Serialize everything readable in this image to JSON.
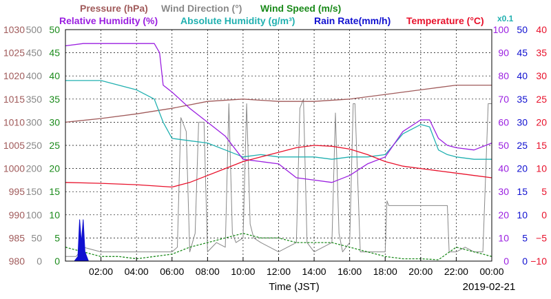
{
  "chart_data": {
    "type": "line",
    "xlabel": "Time (JST)",
    "date": "2019-02-21",
    "x_ticks": [
      "02:00",
      "04:00",
      "06:00",
      "08:00",
      "10:00",
      "12:00",
      "14:00",
      "16:00",
      "18:00",
      "20:00",
      "22:00",
      "00:00"
    ],
    "grid": true,
    "legend_row1": [
      {
        "text": "Pressure (hPa)",
        "color": "#a05a5a"
      },
      {
        "text": "Wind Direction (°)",
        "color": "#888888"
      },
      {
        "text": "Wind Speed (m/s)",
        "color": "#1a8a1a"
      }
    ],
    "legend_row2": [
      {
        "text": "Relative Humidity (%)",
        "color": "#9a1ee0"
      },
      {
        "text": "Absolute Humidity (g/m³)",
        "color": "#20b0b0"
      },
      {
        "text": "Rain Rate(mm/h)",
        "color": "#1010d0"
      },
      {
        "text": "Temperature (°C)",
        "color": "#e8102a"
      },
      {
        "text": "x0.1",
        "color": "#20b0b0"
      }
    ],
    "axes": {
      "pressure": {
        "color": "#a05a5a",
        "range": [
          980,
          1030
        ],
        "ticks": [
          "980",
          "985",
          "990",
          "995",
          "1000",
          "1005",
          "1010",
          "1015",
          "1020",
          "1025",
          "1030"
        ]
      },
      "wind_direction": {
        "color": "#888888",
        "range": [
          0,
          500
        ],
        "ticks": [
          "0",
          "50",
          "100",
          "150",
          "200",
          "250",
          "300",
          "350",
          "400",
          "450",
          "500"
        ]
      },
      "wind_speed": {
        "color": "#1a8a1a",
        "range": [
          0,
          50
        ],
        "ticks": [
          "0",
          "5",
          "10",
          "15",
          "20",
          "25",
          "30",
          "35",
          "40",
          "45",
          "50"
        ]
      },
      "humidity": {
        "color": "#9a1ee0",
        "range": [
          0,
          100
        ],
        "ticks": [
          "0",
          "10",
          "20",
          "30",
          "40",
          "50",
          "60",
          "70",
          "80",
          "90",
          "100"
        ]
      },
      "rain_rate": {
        "color": "#1010d0",
        "range": [
          0,
          50
        ],
        "ticks": [
          "0",
          "5",
          "10",
          "15",
          "20",
          "25",
          "30",
          "35",
          "40",
          "45",
          "50"
        ]
      },
      "temperature": {
        "color": "#e8102a",
        "range": [
          -10,
          40
        ],
        "ticks": [
          "−10",
          "−5",
          "0",
          "5",
          "10",
          "15",
          "20",
          "25",
          "30",
          "35",
          "40"
        ]
      }
    },
    "series": [
      {
        "name": "Pressure (hPa)",
        "axis": "pressure",
        "color": "#a05a5a",
        "x": [
          0,
          2,
          4,
          6,
          8,
          10,
          12,
          14,
          16,
          18,
          20,
          22,
          24
        ],
        "y": [
          1010,
          1010.8,
          1011.8,
          1013,
          1014.5,
          1015,
          1014.5,
          1014.5,
          1015,
          1016,
          1017,
          1018,
          1018
        ]
      },
      {
        "name": "Wind Direction (°)",
        "axis": "wind_direction",
        "color": "#888888",
        "x": [
          0,
          0.6,
          1,
          2,
          3,
          4,
          5,
          5.5,
          6,
          6.3,
          6.5,
          6.8,
          7,
          7.3,
          7.5,
          7.8,
          8,
          8.5,
          9,
          9.2,
          9.4,
          9.6,
          10,
          10.2,
          10.4,
          10.6,
          11,
          11.5,
          12,
          12.5,
          13,
          13.2,
          13.4,
          13.6,
          14,
          14.5,
          15,
          15.2,
          15.4,
          15.6,
          16,
          16.2,
          16.3,
          16.6,
          17,
          17.5,
          18,
          18.1,
          18.2,
          18.5,
          19,
          20,
          21,
          21.5,
          21.6,
          22,
          22.5,
          23,
          23.5,
          23.8,
          24
        ],
        "y": [
          10,
          10,
          30,
          20,
          20,
          20,
          20,
          20,
          20,
          30,
          310,
          280,
          20,
          60,
          300,
          300,
          20,
          40,
          30,
          340,
          60,
          40,
          50,
          340,
          80,
          50,
          40,
          30,
          20,
          30,
          40,
          330,
          350,
          40,
          20,
          30,
          40,
          320,
          60,
          20,
          40,
          340,
          340,
          20,
          20,
          20,
          20,
          130,
          120,
          120,
          120,
          120,
          120,
          120,
          20,
          20,
          30,
          20,
          20,
          340,
          340
        ]
      },
      {
        "name": "Wind Speed (m/s)",
        "axis": "wind_speed",
        "color": "#1a8a1a",
        "x": [
          0,
          1,
          2,
          3,
          4,
          5,
          6,
          7,
          8,
          9,
          10,
          11,
          12,
          13,
          14,
          15,
          16,
          17,
          18,
          19,
          20,
          21,
          22,
          23,
          24
        ],
        "y": [
          3,
          2,
          1,
          1,
          0.5,
          1,
          1.5,
          3,
          4,
          5,
          6,
          5,
          5,
          4,
          4,
          4,
          3,
          2,
          1,
          0.5,
          0.5,
          0.3,
          3,
          2,
          1
        ]
      },
      {
        "name": "Relative Humidity (%)",
        "axis": "humidity",
        "color": "#9a1ee0",
        "x": [
          0,
          1,
          2,
          3,
          4,
          5,
          5.3,
          5.5,
          6,
          7,
          8,
          9,
          10,
          11,
          12,
          13,
          14,
          15,
          16,
          17,
          18,
          19,
          20,
          20.5,
          21,
          21.5,
          22,
          23,
          24
        ],
        "y": [
          93,
          94,
          94,
          94,
          94,
          94,
          90,
          76,
          73,
          66,
          60,
          54,
          44,
          43,
          42,
          36,
          35,
          34,
          37,
          42,
          45,
          56,
          61,
          61,
          53,
          50,
          49,
          48,
          51
        ]
      },
      {
        "name": "Absolute Humidity (g/m³)",
        "axis": "humidity",
        "color": "#20b0b0",
        "x": [
          0,
          2,
          4,
          5,
          5.5,
          6,
          7,
          8,
          9,
          10,
          11,
          12,
          13,
          14,
          15,
          16,
          17,
          18,
          19,
          20,
          20.5,
          21,
          21.5,
          22,
          23,
          24
        ],
        "y": [
          78,
          78,
          74,
          70,
          60,
          53,
          52,
          51,
          48,
          45,
          46,
          45,
          45,
          45,
          44,
          45,
          45,
          46,
          55,
          59,
          58,
          48,
          46,
          45,
          44,
          44
        ]
      },
      {
        "name": "Rain Rate(mm/h)",
        "axis": "rain_rate",
        "color": "#1010d0",
        "x": [
          0,
          0.5,
          0.7,
          0.8,
          0.9,
          1,
          1.1,
          1.2,
          1.3,
          1.5,
          2
        ],
        "y": [
          0,
          0,
          1,
          9,
          4,
          9,
          2,
          1,
          0,
          0,
          0
        ]
      },
      {
        "name": "Temperature (°C)",
        "axis": "temperature",
        "color": "#e8102a",
        "x": [
          0,
          2,
          4,
          6,
          7,
          8,
          9,
          10,
          11,
          12,
          13,
          14,
          15,
          16,
          17,
          18,
          19,
          20,
          21,
          22,
          23,
          24
        ],
        "y": [
          7,
          6.8,
          6.5,
          6,
          7,
          8.5,
          10,
          11.5,
          12.5,
          13.5,
          14.5,
          15,
          14.8,
          14.2,
          13,
          11.5,
          10.5,
          10,
          9.5,
          9,
          8.5,
          8
        ]
      }
    ]
  }
}
